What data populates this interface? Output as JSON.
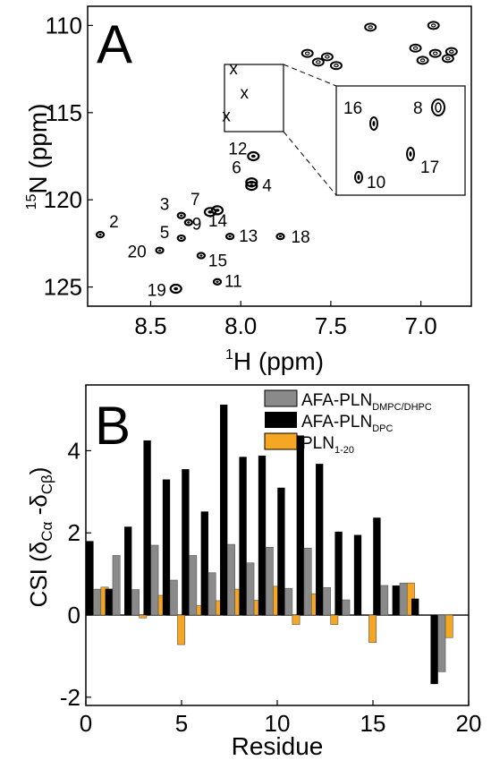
{
  "chart_data": [
    {
      "type": "scatter",
      "panel_label": "A",
      "xlabel_sup": "1",
      "xlabel": "H  (ppm)",
      "ylabel_sup": "15",
      "ylabel": "N  (ppm)",
      "xlim": [
        8.85,
        6.72
      ],
      "ylim": [
        126.1,
        108.9
      ],
      "x_reversed": true,
      "y_reversed": true,
      "x_ticks": [
        8.5,
        8.0,
        7.5,
        7.0
      ],
      "x_tick_labels": [
        "8.5",
        "8.0",
        "7.5",
        "7.0"
      ],
      "y_ticks": [
        110,
        115,
        120,
        125
      ],
      "y_tick_labels": [
        "110",
        "115",
        "120",
        "125"
      ],
      "peaks": [
        {
          "label": "2",
          "x": 8.78,
          "y": 122.0
        },
        {
          "label": "3",
          "x": 8.33,
          "y": 120.9
        },
        {
          "label": "4",
          "x": 7.94,
          "y": 119.2
        },
        {
          "label": "5",
          "x": 8.33,
          "y": 122.2
        },
        {
          "label": "6",
          "x": 7.94,
          "y": 119.0
        },
        {
          "label": "7",
          "x": 8.13,
          "y": 120.6
        },
        {
          "label": "9",
          "x": 8.29,
          "y": 121.3
        },
        {
          "label": "11",
          "x": 8.13,
          "y": 124.7
        },
        {
          "label": "12",
          "x": 7.93,
          "y": 117.5
        },
        {
          "label": "13",
          "x": 8.06,
          "y": 122.1
        },
        {
          "label": "14",
          "x": 8.17,
          "y": 120.7
        },
        {
          "label": "15",
          "x": 8.22,
          "y": 123.2
        },
        {
          "label": "18",
          "x": 7.78,
          "y": 122.1
        },
        {
          "label": "19",
          "x": 8.36,
          "y": 125.1
        },
        {
          "label": "20",
          "x": 8.45,
          "y": 122.9
        }
      ],
      "sidechain_peaks": [
        {
          "x": 7.63,
          "y": 111.6
        },
        {
          "x": 7.57,
          "y": 112.1
        },
        {
          "x": 7.52,
          "y": 111.8
        },
        {
          "x": 7.47,
          "y": 112.3
        },
        {
          "x": 7.28,
          "y": 110.1
        },
        {
          "x": 7.03,
          "y": 111.3
        },
        {
          "x": 6.99,
          "y": 112.0
        },
        {
          "x": 6.92,
          "y": 111.6
        },
        {
          "x": 6.85,
          "y": 111.9
        },
        {
          "x": 6.83,
          "y": 111.5
        },
        {
          "x": 6.93,
          "y": 110.0
        }
      ],
      "x_markers": [
        {
          "label": "x",
          "x": 8.04,
          "y": 112.8
        },
        {
          "label": "x",
          "x": 7.98,
          "y": 114.2
        },
        {
          "label": "x",
          "x": 8.08,
          "y": 115.5
        }
      ],
      "inset": {
        "labels": [
          "16",
          "8",
          "17",
          "10"
        ]
      }
    },
    {
      "type": "bar",
      "panel_label": "B",
      "xlabel": "Residue",
      "ylabel": "CSI (δ",
      "ylabel_sub1": "Cα",
      "ylabel_mid": " -δ",
      "ylabel_sub2": "Cβ",
      "ylabel_end": ")",
      "xlim": [
        0,
        20
      ],
      "ylim": [
        -2.2,
        5.6
      ],
      "x_ticks": [
        0,
        5,
        10,
        15,
        20
      ],
      "x_tick_labels": [
        "0",
        "5",
        "10",
        "15",
        "20"
      ],
      "y_ticks": [
        -2,
        0,
        2,
        4
      ],
      "y_tick_labels": [
        "-2",
        "0",
        "2",
        "4"
      ],
      "categories": [
        1,
        2,
        3,
        4,
        5,
        6,
        7,
        8,
        9,
        10,
        11,
        12,
        13,
        14,
        15,
        16,
        17,
        18,
        19
      ],
      "series": [
        {
          "name": "AFA-PLN",
          "name_sub": "DMPC/DHPC",
          "color": "#8a8a8a",
          "values": [
            0.63,
            1.45,
            0.62,
            1.7,
            0.85,
            1.45,
            1.03,
            1.72,
            1.27,
            1.65,
            0.65,
            1.63,
            0.67,
            0.37,
            0.0,
            0.72,
            0.78,
            0.0,
            -1.38
          ]
        },
        {
          "name": "AFA-PLN",
          "name_sub": "DPC",
          "color": "#000000",
          "values": [
            1.8,
            0.64,
            2.15,
            4.25,
            3.3,
            3.55,
            2.52,
            5.12,
            3.85,
            3.88,
            3.1,
            4.37,
            3.68,
            2.03,
            1.95,
            2.37,
            0.72,
            0.4,
            -1.68
          ]
        },
        {
          "name": "PLN",
          "name_sub": "1-20",
          "color": "#f5a623",
          "values": [
            0.68,
            0.0,
            -0.07,
            0.48,
            -0.72,
            0.23,
            0.35,
            0.63,
            0.36,
            0.7,
            -0.23,
            0.52,
            -0.23,
            0.0,
            -0.67,
            0.0,
            0.78,
            0.0,
            -0.55
          ]
        }
      ],
      "legend_position": "top-right"
    }
  ]
}
